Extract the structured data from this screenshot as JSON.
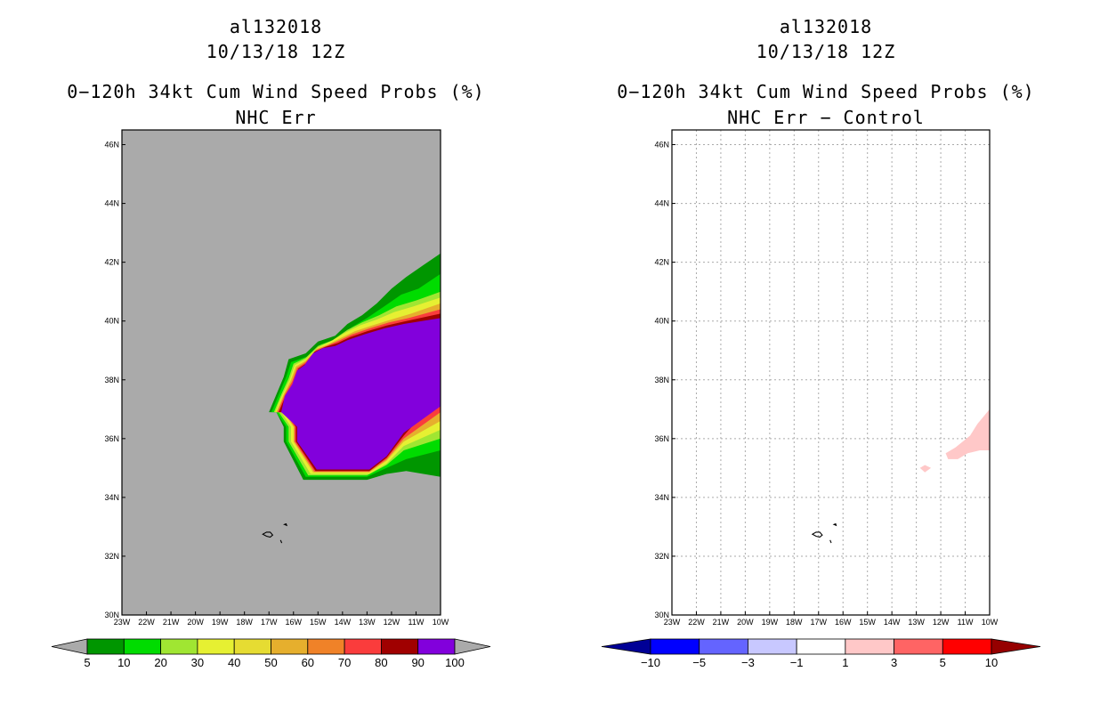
{
  "left_panel": {
    "storm_id": "al132018",
    "datetime": "10/13/18 12Z",
    "product": "0−120h 34kt Cum Wind Speed Probs (%)",
    "subtitle": "NHC Err"
  },
  "right_panel": {
    "storm_id": "al132018",
    "datetime": "10/13/18 12Z",
    "product": "0−120h 34kt Cum Wind Speed Probs (%)",
    "subtitle": "NHC Err − Control"
  },
  "chart_data": [
    {
      "type": "heatmap",
      "title": "NHC Err",
      "x_ticks": [
        "23W",
        "22W",
        "21W",
        "20W",
        "19W",
        "18W",
        "17W",
        "16W",
        "15W",
        "14W",
        "13W",
        "12W",
        "11W",
        "10W"
      ],
      "y_ticks": [
        "30N",
        "32N",
        "34N",
        "36N",
        "38N",
        "40N",
        "42N",
        "44N",
        "46N"
      ],
      "xlim": [
        -23,
        -10
      ],
      "ylim": [
        30,
        46.5
      ],
      "grid": false,
      "background_color": "#aaaaaa",
      "colorbar": {
        "labels": [
          "5",
          "10",
          "20",
          "30",
          "40",
          "50",
          "60",
          "70",
          "80",
          "90",
          "100"
        ],
        "colors": [
          "#009600",
          "#00dc00",
          "#a0e632",
          "#e6f032",
          "#e6dc32",
          "#e6af2d",
          "#f08228",
          "#fa3c3c",
          "#a00000",
          "#8200dc"
        ],
        "end_colors": [
          "#aaaaaa",
          "#aaaaaa"
        ]
      },
      "contours": [
        {
          "level": 5,
          "color": "#009600",
          "points": [
            [
              -16.7,
              36.9
            ],
            [
              -16.4,
              36.4
            ],
            [
              -16.4,
              35.9
            ],
            [
              -15.6,
              34.6
            ],
            [
              -13.0,
              34.6
            ],
            [
              -12.2,
              34.8
            ],
            [
              -11.4,
              34.9
            ],
            [
              -10.0,
              34.7
            ],
            [
              -10.0,
              42.3
            ],
            [
              -10.7,
              41.9
            ],
            [
              -11.4,
              41.5
            ],
            [
              -12.0,
              41.1
            ],
            [
              -12.6,
              40.6
            ],
            [
              -13.2,
              40.2
            ],
            [
              -13.8,
              39.9
            ],
            [
              -14.3,
              39.5
            ],
            [
              -15.0,
              39.3
            ],
            [
              -15.5,
              38.9
            ],
            [
              -16.2,
              38.7
            ],
            [
              -16.4,
              38.1
            ],
            [
              -16.7,
              37.5
            ],
            [
              -17.0,
              36.9
            ]
          ]
        },
        {
          "level": 10,
          "color": "#00dc00",
          "points": [
            [
              -16.7,
              36.9
            ],
            [
              -16.3,
              36.4
            ],
            [
              -16.3,
              35.9
            ],
            [
              -15.5,
              34.7
            ],
            [
              -13.0,
              34.7
            ],
            [
              -12.2,
              35.0
            ],
            [
              -11.4,
              35.3
            ],
            [
              -10.0,
              35.6
            ],
            [
              -10.0,
              41.6
            ],
            [
              -10.9,
              41.1
            ],
            [
              -11.6,
              40.9
            ],
            [
              -12.3,
              40.5
            ],
            [
              -13.0,
              40.1
            ],
            [
              -13.6,
              39.8
            ],
            [
              -14.2,
              39.4
            ],
            [
              -14.9,
              39.2
            ],
            [
              -15.4,
              38.8
            ],
            [
              -16.1,
              38.6
            ],
            [
              -16.3,
              38.1
            ],
            [
              -16.6,
              37.5
            ],
            [
              -16.9,
              36.9
            ]
          ]
        },
        {
          "level": 20,
          "color": "#a0e632",
          "points": [
            [
              -16.6,
              36.9
            ],
            [
              -16.2,
              36.4
            ],
            [
              -16.2,
              35.9
            ],
            [
              -15.4,
              34.75
            ],
            [
              -13.0,
              34.75
            ],
            [
              -12.2,
              35.1
            ],
            [
              -11.5,
              35.6
            ],
            [
              -10.0,
              36.0
            ],
            [
              -10.0,
              41.0
            ],
            [
              -11.0,
              40.7
            ],
            [
              -11.8,
              40.5
            ],
            [
              -12.5,
              40.2
            ],
            [
              -13.2,
              39.95
            ],
            [
              -13.8,
              39.7
            ],
            [
              -14.4,
              39.35
            ],
            [
              -15.0,
              39.15
            ],
            [
              -15.5,
              38.75
            ],
            [
              -16.0,
              38.55
            ],
            [
              -16.2,
              38.05
            ],
            [
              -16.5,
              37.5
            ],
            [
              -16.8,
              36.9
            ]
          ]
        },
        {
          "level": 30,
          "color": "#e6f032",
          "points": [
            [
              -16.5,
              36.9
            ],
            [
              -16.1,
              36.4
            ],
            [
              -16.1,
              35.9
            ],
            [
              -15.3,
              34.8
            ],
            [
              -12.9,
              34.8
            ],
            [
              -12.2,
              35.15
            ],
            [
              -11.5,
              35.75
            ],
            [
              -10.0,
              36.3
            ],
            [
              -10.0,
              40.8
            ],
            [
              -11.1,
              40.5
            ],
            [
              -11.9,
              40.3
            ],
            [
              -12.6,
              40.05
            ],
            [
              -13.3,
              39.85
            ],
            [
              -13.9,
              39.6
            ],
            [
              -14.5,
              39.3
            ],
            [
              -15.0,
              39.1
            ],
            [
              -15.5,
              38.7
            ],
            [
              -15.95,
              38.5
            ],
            [
              -16.15,
              38.0
            ],
            [
              -16.45,
              37.5
            ],
            [
              -16.75,
              36.9
            ]
          ]
        },
        {
          "level": 50,
          "color": "#e6af2d",
          "points": [
            [
              -16.4,
              36.9
            ],
            [
              -16.0,
              36.4
            ],
            [
              -16.0,
              35.9
            ],
            [
              -15.2,
              34.85
            ],
            [
              -12.9,
              34.85
            ],
            [
              -12.2,
              35.25
            ],
            [
              -11.5,
              35.9
            ],
            [
              -10.0,
              36.6
            ],
            [
              -10.0,
              40.6
            ],
            [
              -11.2,
              40.25
            ],
            [
              -12.0,
              40.05
            ],
            [
              -12.8,
              39.85
            ],
            [
              -13.5,
              39.65
            ],
            [
              -14.0,
              39.45
            ],
            [
              -14.6,
              39.2
            ],
            [
              -15.05,
              39.05
            ],
            [
              -15.5,
              38.65
            ],
            [
              -15.9,
              38.45
            ],
            [
              -16.1,
              38.0
            ],
            [
              -16.4,
              37.5
            ],
            [
              -16.7,
              36.9
            ]
          ]
        },
        {
          "level": 70,
          "color": "#fa3c3c",
          "points": [
            [
              -16.35,
              36.9
            ],
            [
              -15.95,
              36.4
            ],
            [
              -15.95,
              35.9
            ],
            [
              -15.15,
              34.88
            ],
            [
              -12.9,
              34.88
            ],
            [
              -12.2,
              35.3
            ],
            [
              -11.5,
              36.0
            ],
            [
              -10.0,
              36.9
            ],
            [
              -10.0,
              40.4
            ],
            [
              -11.3,
              40.1
            ],
            [
              -12.1,
              39.95
            ],
            [
              -12.9,
              39.75
            ],
            [
              -13.6,
              39.55
            ],
            [
              -14.1,
              39.35
            ],
            [
              -14.65,
              39.15
            ],
            [
              -15.1,
              39.0
            ],
            [
              -15.5,
              38.6
            ],
            [
              -15.85,
              38.4
            ],
            [
              -16.05,
              37.95
            ],
            [
              -16.35,
              37.5
            ],
            [
              -16.65,
              36.9
            ]
          ]
        },
        {
          "level": 80,
          "color": "#a00000",
          "points": [
            [
              -16.3,
              36.9
            ],
            [
              -15.9,
              36.4
            ],
            [
              -15.9,
              35.9
            ],
            [
              -15.1,
              34.9
            ],
            [
              -12.9,
              34.9
            ],
            [
              -12.2,
              35.35
            ],
            [
              -11.5,
              36.1
            ],
            [
              -10.0,
              37.5
            ],
            [
              -10.0,
              40.25
            ],
            [
              -11.4,
              40.0
            ],
            [
              -12.2,
              39.85
            ],
            [
              -13.0,
              39.65
            ],
            [
              -13.7,
              39.45
            ],
            [
              -14.2,
              39.25
            ],
            [
              -14.7,
              39.12
            ],
            [
              -15.15,
              38.95
            ],
            [
              -15.5,
              38.55
            ],
            [
              -15.8,
              38.38
            ],
            [
              -16.0,
              37.9
            ],
            [
              -16.3,
              37.5
            ],
            [
              -16.6,
              36.9
            ]
          ]
        },
        {
          "level": 100,
          "color": "#8200dc",
          "points": [
            [
              -16.5,
              36.9
            ],
            [
              -15.85,
              36.4
            ],
            [
              -15.85,
              35.9
            ],
            [
              -15.05,
              34.95
            ],
            [
              -12.9,
              34.95
            ],
            [
              -12.2,
              35.4
            ],
            [
              -11.5,
              36.2
            ],
            [
              -10.0,
              37.1
            ],
            [
              -10.0,
              40.1
            ],
            [
              -11.5,
              39.9
            ],
            [
              -12.3,
              39.75
            ],
            [
              -13.1,
              39.55
            ],
            [
              -13.8,
              39.35
            ],
            [
              -14.3,
              39.15
            ],
            [
              -14.8,
              39.08
            ],
            [
              -15.2,
              38.9
            ],
            [
              -15.55,
              38.5
            ],
            [
              -15.85,
              38.32
            ],
            [
              -16.05,
              37.85
            ],
            [
              -16.35,
              37.45
            ]
          ]
        }
      ],
      "islands": [
        {
          "name": "Madeira",
          "points": [
            [
              -17.25,
              32.75
            ],
            [
              -17.1,
              32.82
            ],
            [
              -16.95,
              32.82
            ],
            [
              -16.85,
              32.72
            ],
            [
              -16.95,
              32.65
            ],
            [
              -17.1,
              32.68
            ]
          ]
        },
        {
          "name": "Porto Santo",
          "points": [
            [
              -16.37,
              33.08
            ],
            [
              -16.3,
              33.1
            ],
            [
              -16.28,
              33.05
            ]
          ]
        },
        {
          "name": "Desertas",
          "points": [
            [
              -16.53,
              32.55
            ],
            [
              -16.48,
              32.45
            ]
          ]
        }
      ]
    },
    {
      "type": "heatmap",
      "title": "NHC Err − Control",
      "x_ticks": [
        "23W",
        "22W",
        "21W",
        "20W",
        "19W",
        "18W",
        "17W",
        "16W",
        "15W",
        "14W",
        "13W",
        "12W",
        "11W",
        "10W"
      ],
      "y_ticks": [
        "30N",
        "32N",
        "34N",
        "36N",
        "38N",
        "40N",
        "42N",
        "44N",
        "46N"
      ],
      "xlim": [
        -23,
        -10
      ],
      "ylim": [
        30,
        46.5
      ],
      "grid": true,
      "background_color": "#ffffff",
      "colorbar": {
        "labels": [
          "−10",
          "−5",
          "−3",
          "−1",
          "1",
          "3",
          "5",
          "10"
        ],
        "colors": [
          "#0000ff",
          "#6464ff",
          "#c8c8ff",
          "#ffffff",
          "#ffc8c8",
          "#ff6464",
          "#ff0000"
        ],
        "end_colors": [
          "#000096",
          "#960000"
        ]
      },
      "contours": [
        {
          "level": 1,
          "color": "#ffc8c8",
          "points": [
            [
              -11.8,
              35.5
            ],
            [
              -11.4,
              35.7
            ],
            [
              -10.8,
              36.1
            ],
            [
              -10.5,
              36.5
            ],
            [
              -10.2,
              36.8
            ],
            [
              -10.0,
              37.0
            ],
            [
              -10.0,
              35.6
            ],
            [
              -10.4,
              35.6
            ],
            [
              -10.9,
              35.5
            ],
            [
              -11.3,
              35.3
            ],
            [
              -11.7,
              35.3
            ]
          ]
        },
        {
          "level": 1,
          "color": "#ffc8c8",
          "points": [
            [
              -12.85,
              35.0
            ],
            [
              -12.65,
              35.1
            ],
            [
              -12.4,
              35.0
            ],
            [
              -12.65,
              34.85
            ]
          ]
        }
      ],
      "islands": [
        {
          "name": "Madeira",
          "points": [
            [
              -17.25,
              32.75
            ],
            [
              -17.1,
              32.82
            ],
            [
              -16.95,
              32.82
            ],
            [
              -16.85,
              32.72
            ],
            [
              -16.95,
              32.65
            ],
            [
              -17.1,
              32.68
            ]
          ]
        },
        {
          "name": "Porto Santo",
          "points": [
            [
              -16.37,
              33.08
            ],
            [
              -16.3,
              33.1
            ],
            [
              -16.28,
              33.05
            ]
          ]
        },
        {
          "name": "Desertas",
          "points": [
            [
              -16.53,
              32.55
            ],
            [
              -16.48,
              32.45
            ]
          ]
        }
      ]
    }
  ]
}
